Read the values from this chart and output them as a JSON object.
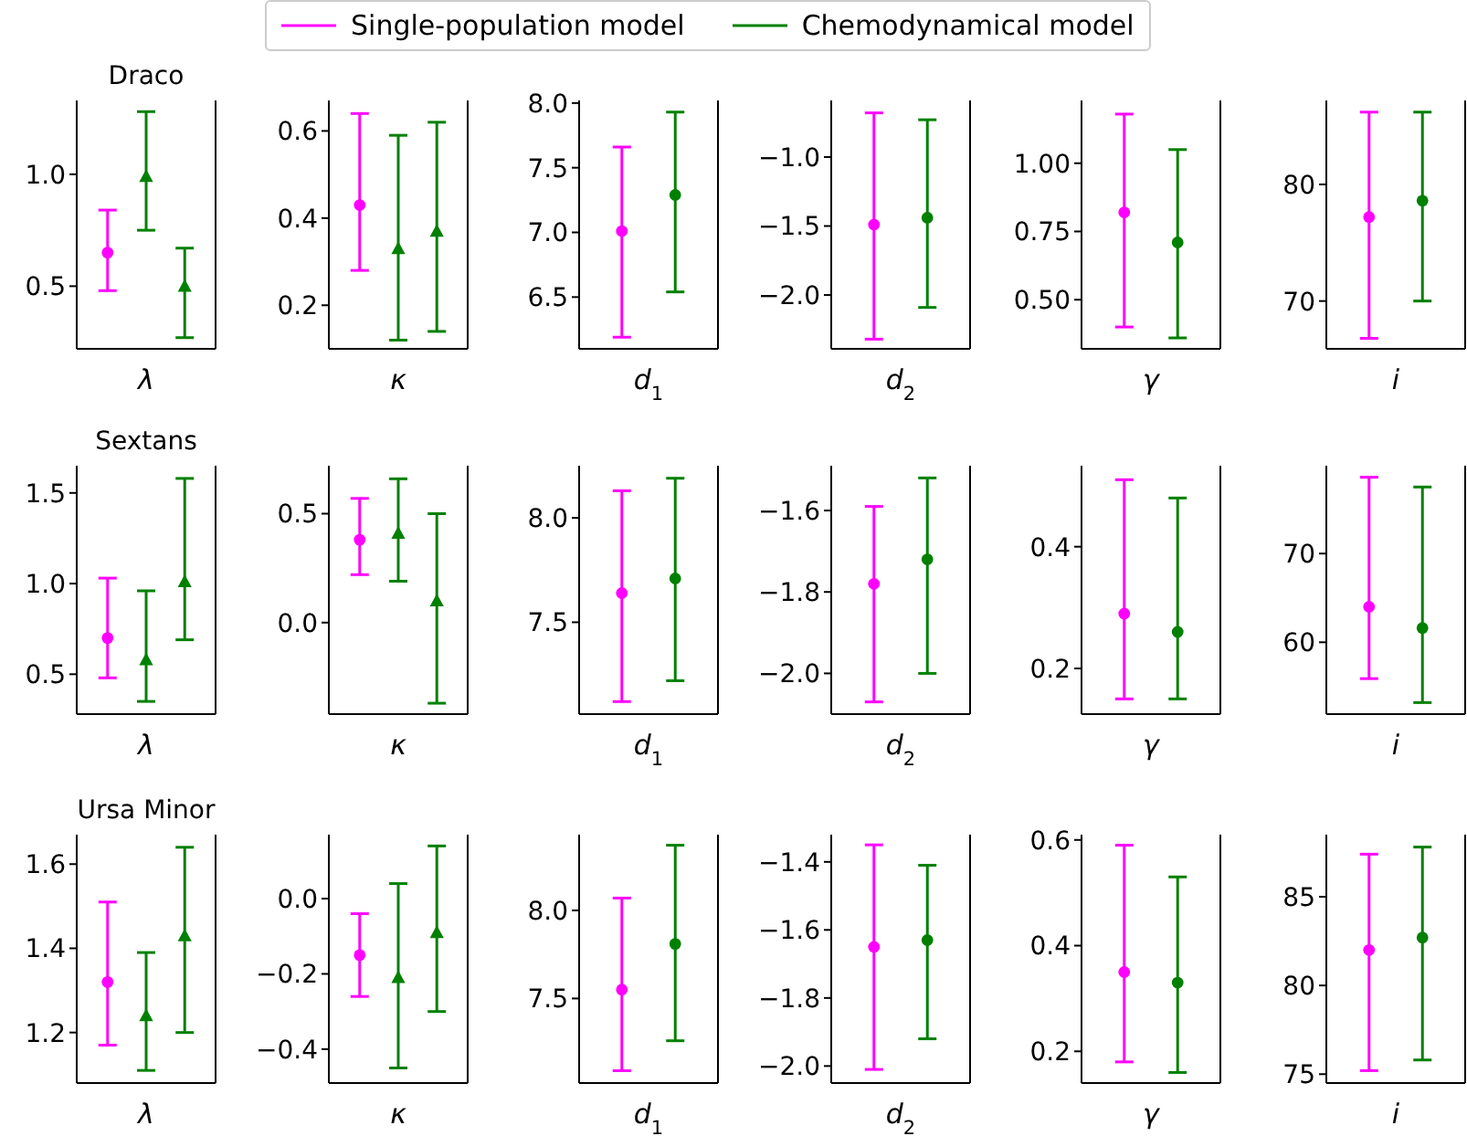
{
  "chart_data": [
    {
      "type": "scatter",
      "title": "Draco",
      "xlabel": "λ",
      "categories": [
        null,
        null,
        null
      ],
      "ylim": [
        0.22,
        1.33
      ],
      "yticks": [
        0.5,
        {
          "value": 1.0,
          "label": "1.0"
        }
      ],
      "tick_labels": "y",
      "legend": "top",
      "series": [
        {
          "name": "Single-population model",
          "color": "#ff00ff",
          "marker": "circle",
          "values": [
            0.65,
            null,
            null
          ],
          "errors": [
            [
              0.48,
              0.84
            ],
            null,
            null
          ]
        },
        {
          "name": "Chemodynamical model",
          "color": "#008000",
          "marker": "triangle",
          "values": [
            null,
            0.99,
            null
          ],
          "errors": [
            null,
            [
              0.75,
              1.28
            ],
            null
          ]
        },
        {
          "color": "#008000",
          "marker": "triangle",
          "values": [
            null,
            null,
            0.5
          ],
          "errors": [
            null,
            null,
            [
              0.27,
              0.67
            ]
          ]
        }
      ]
    },
    {
      "type": "scatter",
      "xlabel": "κ",
      "categories": [
        null,
        null,
        null
      ],
      "ylim": [
        0.1,
        0.67
      ],
      "yticks": [
        0.2,
        0.4,
        0.6
      ],
      "tick_labels": "y",
      "series": [
        {
          "color": "#ff00ff",
          "marker": "circle",
          "values": [
            0.43,
            null,
            null
          ],
          "errors": [
            [
              0.28,
              0.64
            ],
            null,
            null
          ]
        },
        {
          "color": "#008000",
          "marker": "triangle",
          "values": [
            null,
            0.33,
            null
          ],
          "errors": [
            null,
            [
              0.12,
              0.59
            ],
            null
          ]
        },
        {
          "color": "#008000",
          "marker": "triangle",
          "values": [
            null,
            null,
            0.37
          ],
          "errors": [
            null,
            null,
            [
              0.14,
              0.62
            ]
          ]
        }
      ]
    },
    {
      "type": "scatter",
      "xlabel": "d$_{1}$",
      "categories": [
        null,
        null
      ],
      "ylim": [
        6.1,
        8.02
      ],
      "yticks": [
        6.5,
        {
          "value": 7.0,
          "label": "7.0"
        },
        7.5,
        {
          "value": 8.0,
          "label": "8.0"
        }
      ],
      "tick_labels": "y",
      "series": [
        {
          "color": "#ff00ff",
          "marker": "circle",
          "values": [
            7.01,
            null
          ],
          "errors": [
            [
              6.19,
              7.66
            ],
            null
          ]
        },
        {
          "color": "#008000",
          "marker": "circle",
          "values": [
            null,
            7.29
          ],
          "errors": [
            null,
            [
              6.54,
              7.93
            ]
          ]
        }
      ]
    },
    {
      "type": "scatter",
      "xlabel": "d$_{2}$",
      "categories": [
        null,
        null
      ],
      "ylim": [
        -2.39,
        -0.59
      ],
      "yticks": [
        {
          "value": -2.0,
          "label": "−2.0"
        },
        {
          "value": -1.5,
          "label": "−1.5"
        },
        {
          "value": -1.0,
          "label": "−1.0"
        }
      ],
      "tick_labels": "y",
      "series": [
        {
          "color": "#ff00ff",
          "marker": "circle",
          "values": [
            -1.49,
            null
          ],
          "errors": [
            [
              -2.32,
              -0.68
            ],
            null
          ]
        },
        {
          "color": "#008000",
          "marker": "circle",
          "values": [
            null,
            -1.44
          ],
          "errors": [
            null,
            [
              -2.09,
              -0.73
            ]
          ]
        }
      ]
    },
    {
      "type": "scatter",
      "xlabel": "γ",
      "categories": [
        null,
        null
      ],
      "ylim": [
        0.32,
        1.23
      ],
      "yticks": [
        {
          "value": 0.5,
          "label": "0.50"
        },
        0.75,
        {
          "value": 1.0,
          "label": "1.00"
        }
      ],
      "tick_labels": "y",
      "series": [
        {
          "color": "#ff00ff",
          "marker": "circle",
          "values": [
            0.82,
            null
          ],
          "errors": [
            [
              0.4,
              1.18
            ],
            null
          ]
        },
        {
          "color": "#008000",
          "marker": "circle",
          "values": [
            null,
            0.71
          ],
          "errors": [
            null,
            [
              0.36,
              1.05
            ]
          ]
        }
      ]
    },
    {
      "type": "scatter",
      "xlabel": "i",
      "categories": [
        null,
        null
      ],
      "ylim": [
        65.9,
        87.2
      ],
      "yticks": [
        70,
        80
      ],
      "tick_labels": "y",
      "series": [
        {
          "color": "#ff00ff",
          "marker": "circle",
          "values": [
            77.2,
            null
          ],
          "errors": [
            [
              66.8,
              86.2
            ],
            null
          ]
        },
        {
          "color": "#008000",
          "marker": "circle",
          "values": [
            null,
            78.6
          ],
          "errors": [
            null,
            [
              70.0,
              86.2
            ]
          ]
        }
      ]
    },
    {
      "type": "scatter",
      "title": "Sextans",
      "xlabel": "λ",
      "categories": [
        null,
        null,
        null
      ],
      "ylim": [
        0.28,
        1.65
      ],
      "yticks": [
        0.5,
        {
          "value": 1.0,
          "label": "1.0"
        },
        1.5
      ],
      "tick_labels": "y",
      "series": [
        {
          "color": "#ff00ff",
          "marker": "circle",
          "values": [
            0.7,
            null,
            null
          ],
          "errors": [
            [
              0.48,
              1.03
            ],
            null,
            null
          ]
        },
        {
          "color": "#008000",
          "marker": "triangle",
          "values": [
            null,
            0.58,
            null
          ],
          "errors": [
            null,
            [
              0.35,
              0.96
            ],
            null
          ]
        },
        {
          "color": "#008000",
          "marker": "triangle",
          "values": [
            null,
            null,
            1.01
          ],
          "errors": [
            null,
            null,
            [
              0.69,
              1.58
            ]
          ]
        }
      ]
    },
    {
      "type": "scatter",
      "xlabel": "κ",
      "categories": [
        null,
        null,
        null
      ],
      "ylim": [
        -0.42,
        0.72
      ],
      "yticks": [
        {
          "value": 0,
          "label": "0.0"
        },
        0.5
      ],
      "tick_labels": "y",
      "series": [
        {
          "color": "#ff00ff",
          "marker": "circle",
          "values": [
            0.38,
            null,
            null
          ],
          "errors": [
            [
              0.22,
              0.57
            ],
            null,
            null
          ]
        },
        {
          "color": "#008000",
          "marker": "triangle",
          "values": [
            null,
            0.41,
            null
          ],
          "errors": [
            null,
            [
              0.19,
              0.66
            ],
            null
          ]
        },
        {
          "color": "#008000",
          "marker": "triangle",
          "values": [
            null,
            null,
            0.1
          ],
          "errors": [
            null,
            null,
            [
              -0.37,
              0.5
            ]
          ]
        }
      ]
    },
    {
      "type": "scatter",
      "xlabel": "d$_{1}$",
      "categories": [
        null,
        null
      ],
      "ylim": [
        7.06,
        8.25
      ],
      "yticks": [
        7.5,
        {
          "value": 8.0,
          "label": "8.0"
        }
      ],
      "tick_labels": "y",
      "series": [
        {
          "color": "#ff00ff",
          "marker": "circle",
          "values": [
            7.64,
            null
          ],
          "errors": [
            [
              7.12,
              8.13
            ],
            null
          ]
        },
        {
          "color": "#008000",
          "marker": "circle",
          "values": [
            null,
            7.71
          ],
          "errors": [
            null,
            [
              7.22,
              8.19
            ]
          ]
        }
      ]
    },
    {
      "type": "scatter",
      "xlabel": "d$_{2}$",
      "categories": [
        null,
        null
      ],
      "ylim": [
        -2.1,
        -1.49
      ],
      "yticks": [
        {
          "value": -2.0,
          "label": "−2.0"
        },
        {
          "value": -1.8,
          "label": "−1.8"
        },
        {
          "value": -1.6,
          "label": "−1.6"
        }
      ],
      "tick_labels": "y",
      "series": [
        {
          "color": "#ff00ff",
          "marker": "circle",
          "values": [
            -1.78,
            null
          ],
          "errors": [
            [
              -2.07,
              -1.59
            ],
            null
          ]
        },
        {
          "color": "#008000",
          "marker": "circle",
          "values": [
            null,
            -1.72
          ],
          "errors": [
            null,
            [
              -2.0,
              -1.52
            ]
          ]
        }
      ]
    },
    {
      "type": "scatter",
      "xlabel": "γ",
      "categories": [
        null,
        null
      ],
      "ylim": [
        0.125,
        0.533
      ],
      "yticks": [
        0.2,
        0.4
      ],
      "tick_labels": "y",
      "series": [
        {
          "color": "#ff00ff",
          "marker": "circle",
          "values": [
            0.29,
            null
          ],
          "errors": [
            [
              0.15,
              0.51
            ],
            null
          ]
        },
        {
          "color": "#008000",
          "marker": "circle",
          "values": [
            null,
            0.26
          ],
          "errors": [
            null,
            [
              0.15,
              0.48
            ]
          ]
        }
      ]
    },
    {
      "type": "scatter",
      "xlabel": "i",
      "categories": [
        null,
        null
      ],
      "ylim": [
        51.9,
        79.9
      ],
      "yticks": [
        60,
        70
      ],
      "tick_labels": "y",
      "series": [
        {
          "color": "#ff00ff",
          "marker": "circle",
          "values": [
            64.0,
            null
          ],
          "errors": [
            [
              55.9,
              78.6
            ],
            null
          ]
        },
        {
          "color": "#008000",
          "marker": "circle",
          "values": [
            null,
            61.6
          ],
          "errors": [
            null,
            [
              53.2,
              77.5
            ]
          ]
        }
      ]
    },
    {
      "type": "scatter",
      "title": "Ursa Minor",
      "xlabel": "λ",
      "categories": [
        null,
        null,
        null
      ],
      "ylim": [
        1.08,
        1.67
      ],
      "yticks": [
        1.2,
        1.4,
        1.6
      ],
      "tick_labels": "y",
      "series": [
        {
          "color": "#ff00ff",
          "marker": "circle",
          "values": [
            1.32,
            null,
            null
          ],
          "errors": [
            [
              1.17,
              1.51
            ],
            null,
            null
          ]
        },
        {
          "color": "#008000",
          "marker": "triangle",
          "values": [
            null,
            1.24,
            null
          ],
          "errors": [
            null,
            [
              1.11,
              1.39
            ],
            null
          ]
        },
        {
          "color": "#008000",
          "marker": "triangle",
          "values": [
            null,
            null,
            1.43
          ],
          "errors": [
            null,
            null,
            [
              1.2,
              1.64
            ]
          ]
        }
      ]
    },
    {
      "type": "scatter",
      "xlabel": "κ",
      "categories": [
        null,
        null,
        null
      ],
      "ylim": [
        -0.49,
        0.17
      ],
      "yticks": [
        {
          "value": -0.4,
          "label": "−0.4"
        },
        {
          "value": -0.2,
          "label": "−0.2"
        },
        {
          "value": 0,
          "label": "0.0"
        }
      ],
      "tick_labels": "y",
      "series": [
        {
          "color": "#ff00ff",
          "marker": "circle",
          "values": [
            -0.15,
            null,
            null
          ],
          "errors": [
            [
              -0.26,
              -0.04
            ],
            null,
            null
          ]
        },
        {
          "color": "#008000",
          "marker": "triangle",
          "values": [
            null,
            -0.21,
            null
          ],
          "errors": [
            null,
            [
              -0.45,
              0.04
            ],
            null
          ]
        },
        {
          "color": "#008000",
          "marker": "triangle",
          "values": [
            null,
            null,
            -0.09
          ],
          "errors": [
            null,
            null,
            [
              -0.3,
              0.14
            ]
          ]
        }
      ]
    },
    {
      "type": "scatter",
      "xlabel": "d$_{1}$",
      "categories": [
        null,
        null
      ],
      "ylim": [
        7.02,
        8.43
      ],
      "yticks": [
        7.5,
        {
          "value": 8.0,
          "label": "8.0"
        }
      ],
      "tick_labels": "y",
      "series": [
        {
          "color": "#ff00ff",
          "marker": "circle",
          "values": [
            7.55,
            null
          ],
          "errors": [
            [
              7.09,
              8.07
            ],
            null
          ]
        },
        {
          "color": "#008000",
          "marker": "circle",
          "values": [
            null,
            7.81
          ],
          "errors": [
            null,
            [
              7.26,
              8.37
            ]
          ]
        }
      ]
    },
    {
      "type": "scatter",
      "xlabel": "d$_{2}$",
      "categories": [
        null,
        null
      ],
      "ylim": [
        -2.05,
        -1.32
      ],
      "yticks": [
        {
          "value": -2.0,
          "label": "−2.0"
        },
        {
          "value": -1.8,
          "label": "−1.8"
        },
        {
          "value": -1.6,
          "label": "−1.6"
        },
        {
          "value": -1.4,
          "label": "−1.4"
        }
      ],
      "tick_labels": "y",
      "series": [
        {
          "color": "#ff00ff",
          "marker": "circle",
          "values": [
            -1.65,
            null
          ],
          "errors": [
            [
              -2.01,
              -1.35
            ],
            null
          ]
        },
        {
          "color": "#008000",
          "marker": "circle",
          "values": [
            null,
            -1.63
          ],
          "errors": [
            null,
            [
              -1.92,
              -1.41
            ]
          ]
        }
      ]
    },
    {
      "type": "scatter",
      "xlabel": "γ",
      "categories": [
        null,
        null
      ],
      "ylim": [
        0.14,
        0.61
      ],
      "yticks": [
        0.2,
        0.4,
        0.6
      ],
      "tick_labels": "y",
      "series": [
        {
          "color": "#ff00ff",
          "marker": "circle",
          "values": [
            0.35,
            null
          ],
          "errors": [
            [
              0.18,
              0.59
            ],
            null
          ]
        },
        {
          "color": "#008000",
          "marker": "circle",
          "values": [
            null,
            0.33
          ],
          "errors": [
            null,
            [
              0.16,
              0.53
            ]
          ]
        }
      ]
    },
    {
      "type": "scatter",
      "xlabel": "i",
      "categories": [
        null,
        null
      ],
      "ylim": [
        74.5,
        88.5
      ],
      "yticks": [
        75,
        80,
        85
      ],
      "tick_labels": "y",
      "series": [
        {
          "color": "#ff00ff",
          "marker": "circle",
          "values": [
            82.0,
            null
          ],
          "errors": [
            [
              75.2,
              87.4
            ],
            null
          ]
        },
        {
          "color": "#008000",
          "marker": "circle",
          "values": [
            null,
            82.7
          ],
          "errors": [
            null,
            [
              75.8,
              87.8
            ]
          ]
        }
      ]
    }
  ]
}
